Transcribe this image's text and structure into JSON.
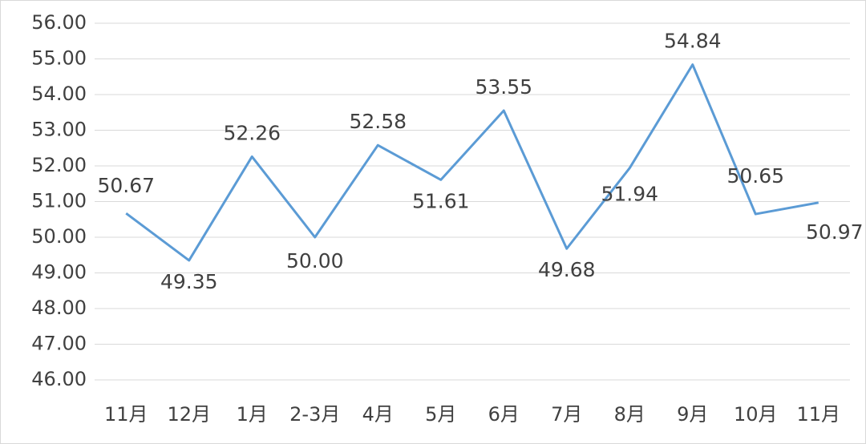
{
  "chart_data": {
    "type": "line",
    "categories": [
      "11月",
      "12月",
      "1月",
      "2-3月",
      "4月",
      "5月",
      "6月",
      "7月",
      "8月",
      "9月",
      "10月",
      "11月"
    ],
    "series": [
      {
        "color": "#5b9bd5",
        "values": [
          50.67,
          49.35,
          52.26,
          50,
          52.58,
          51.61,
          53.55,
          49.68,
          51.94,
          54.84,
          50.65,
          50.97
        ],
        "value_labels": [
          "50.67",
          "49.35",
          "52.26",
          "50.00",
          "52.58",
          "51.61",
          "53.55",
          "49.68",
          "51.94",
          "54.84",
          "50.65",
          "50.97"
        ]
      }
    ],
    "ylim": [
      46,
      56
    ],
    "yticks": [
      {
        "value": 46,
        "label": "46.00"
      },
      {
        "value": 47,
        "label": "47.00"
      },
      {
        "value": 48,
        "label": "48.00"
      },
      {
        "value": 49,
        "label": "49.00"
      },
      {
        "value": 50,
        "label": "50.00"
      },
      {
        "value": 51,
        "label": "51.00"
      },
      {
        "value": 52,
        "label": "52.00"
      },
      {
        "value": 53,
        "label": "53.00"
      },
      {
        "value": 54,
        "label": "54.00"
      },
      {
        "value": 55,
        "label": "55.00"
      },
      {
        "value": 56,
        "label": "56.00"
      }
    ],
    "grid": true
  }
}
